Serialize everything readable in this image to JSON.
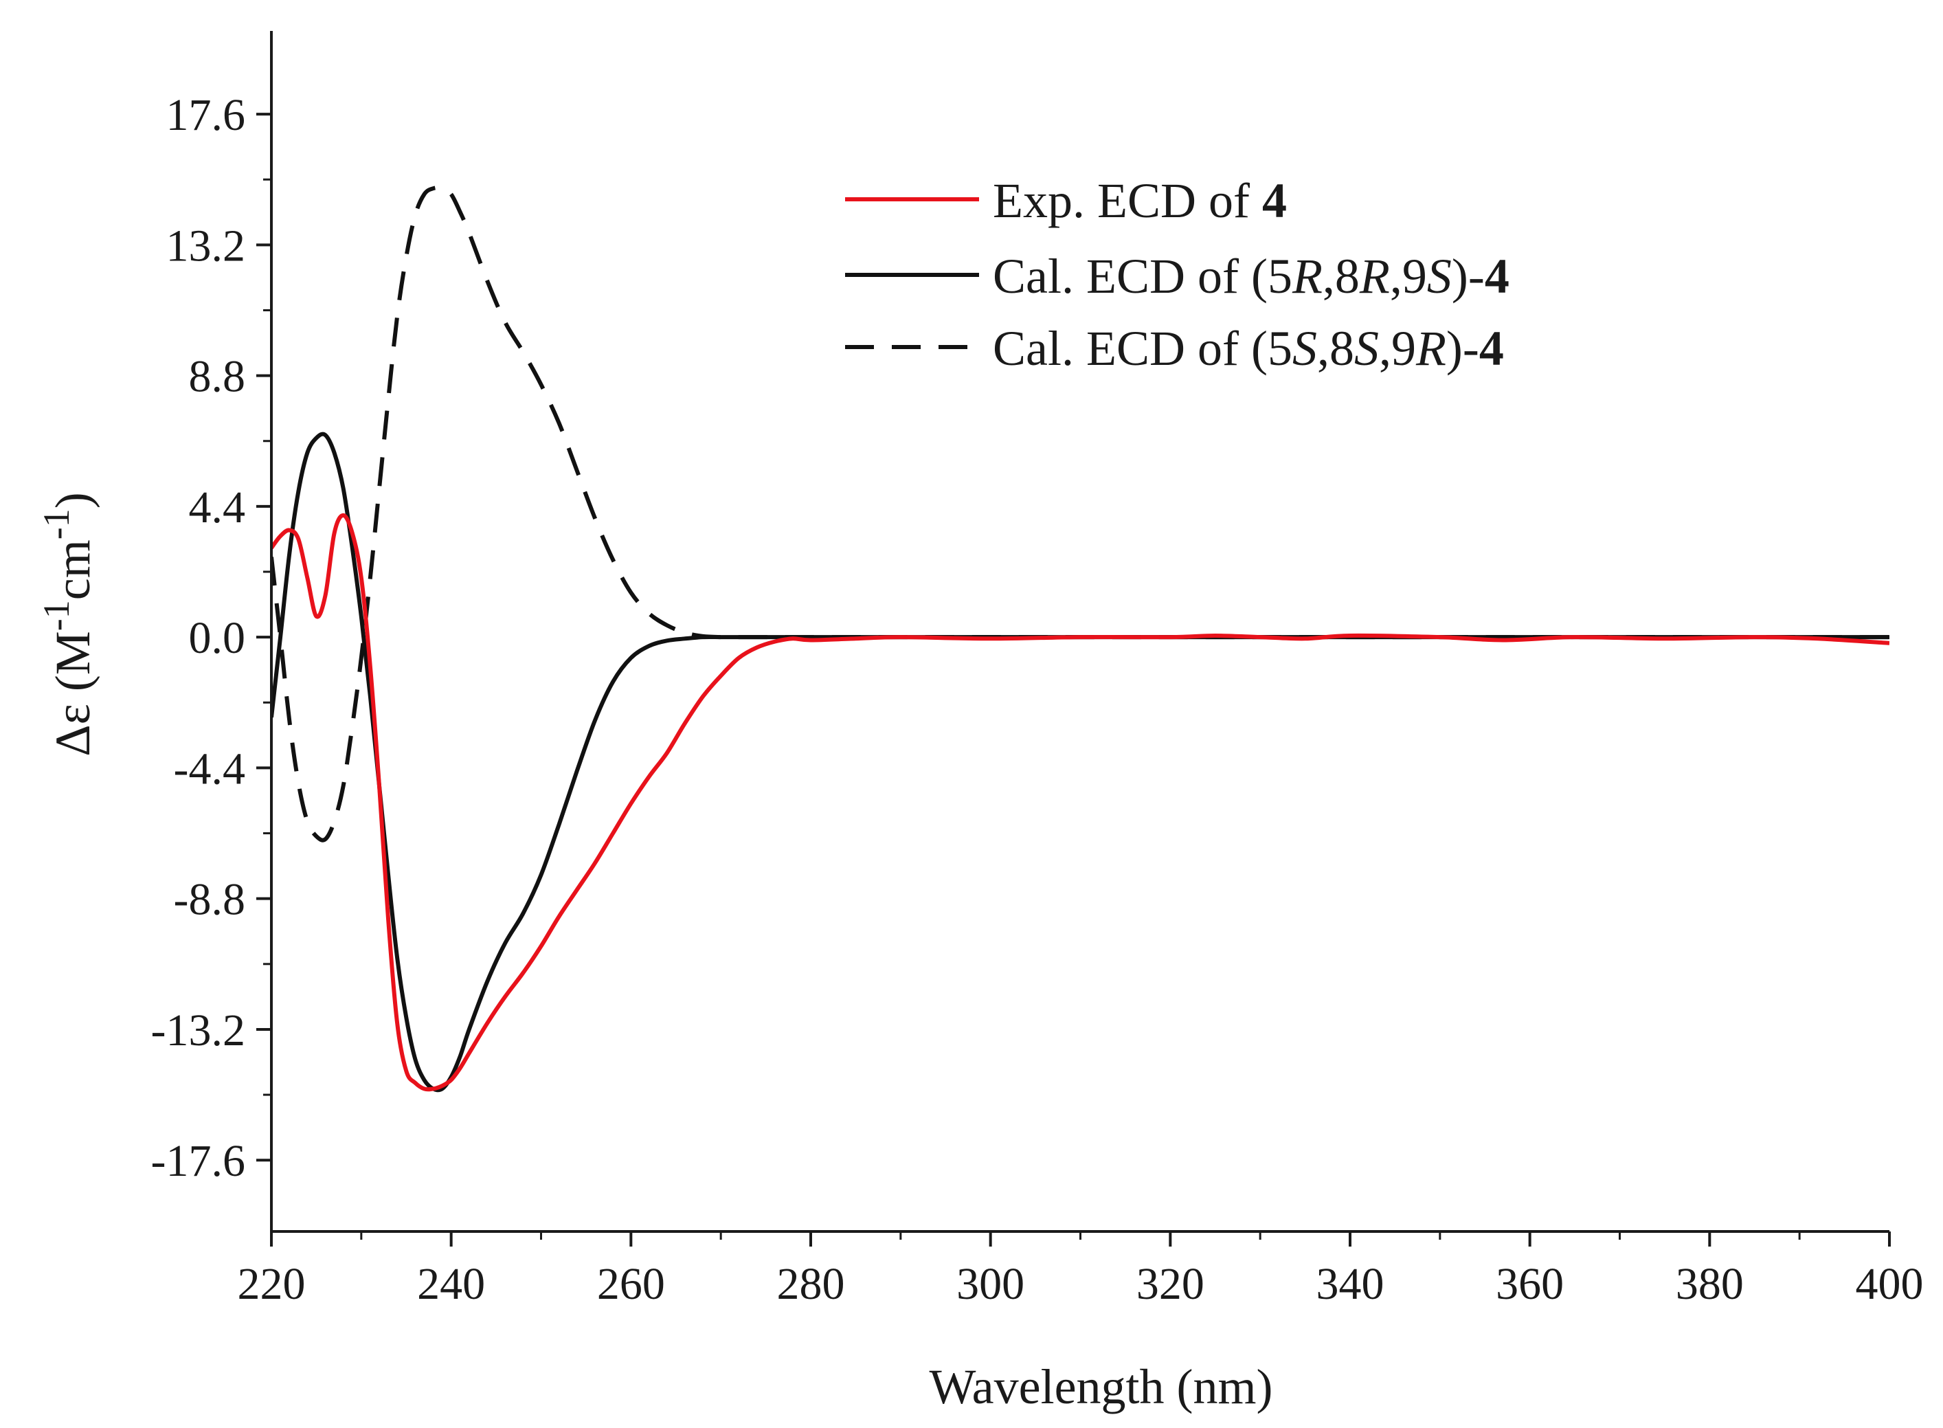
{
  "chart_data": {
    "type": "line",
    "title": "",
    "xlabel": "Wavelength (nm)",
    "ylabel_parts": [
      "Δε (M",
      "-1",
      "cm",
      "-1",
      ")"
    ],
    "xlim": [
      220,
      400
    ],
    "ylim": [
      -20.0,
      20.4
    ],
    "xticks": [
      220,
      240,
      260,
      280,
      300,
      320,
      340,
      360,
      380,
      400
    ],
    "xtick_labels": [
      "220",
      "240",
      "260",
      "280",
      "300",
      "320",
      "340",
      "360",
      "380",
      "400"
    ],
    "yticks": [
      -17.6,
      -13.2,
      -8.8,
      -4.4,
      0.0,
      4.4,
      8.8,
      13.2,
      17.6
    ],
    "ytick_labels": [
      "-17.6",
      "-13.2",
      "-8.8",
      "-4.4",
      "0.0",
      "4.4",
      "8.8",
      "13.2",
      "17.6"
    ],
    "grid": false,
    "legend_position": "top-right",
    "series": [
      {
        "name": "Exp. ECD of 4",
        "legend_parts": [
          {
            "text": "Exp. ECD of ",
            "style": "normal"
          },
          {
            "text": "4",
            "style": "bold"
          }
        ],
        "color": "#e8121b",
        "dash": "solid",
        "x": [
          220,
          221,
          222,
          223,
          224,
          225,
          226,
          227,
          228,
          229,
          230,
          231,
          232,
          233,
          234,
          235,
          236,
          237,
          238,
          239,
          240,
          241,
          242,
          244,
          246,
          248,
          250,
          252,
          254,
          256,
          258,
          260,
          262,
          264,
          266,
          268,
          270,
          272,
          274,
          276,
          278,
          280,
          285,
          290,
          300,
          310,
          320,
          325,
          330,
          335,
          340,
          350,
          357,
          365,
          375,
          385,
          392,
          400
        ],
        "y": [
          3.0,
          3.4,
          3.6,
          3.3,
          2.0,
          0.7,
          1.4,
          3.5,
          4.1,
          3.5,
          2.0,
          -1.0,
          -5.0,
          -9.5,
          -13.0,
          -14.6,
          -15.0,
          -15.2,
          -15.2,
          -15.1,
          -14.9,
          -14.5,
          -14.0,
          -13.0,
          -12.1,
          -11.3,
          -10.4,
          -9.4,
          -8.5,
          -7.6,
          -6.6,
          -5.6,
          -4.7,
          -3.9,
          -2.9,
          -2.0,
          -1.3,
          -0.7,
          -0.35,
          -0.15,
          -0.05,
          -0.1,
          -0.05,
          0.0,
          -0.05,
          0.0,
          0.0,
          0.05,
          0.0,
          -0.05,
          0.05,
          0.0,
          -0.1,
          0.0,
          -0.05,
          0.0,
          -0.05,
          -0.2
        ]
      },
      {
        "name": "Cal. ECD of (5R,8R,9S)-4",
        "legend_parts": [
          {
            "text": "Cal. ECD of (5",
            "style": "normal"
          },
          {
            "text": "R",
            "style": "italic"
          },
          {
            "text": ",8",
            "style": "normal"
          },
          {
            "text": "R",
            "style": "italic"
          },
          {
            "text": ",9",
            "style": "normal"
          },
          {
            "text": "S",
            "style": "italic"
          },
          {
            "text": ")-",
            "style": "normal"
          },
          {
            "text": "4",
            "style": "bold"
          }
        ],
        "color": "#111111",
        "dash": "solid",
        "x": [
          220,
          221,
          222,
          223,
          224,
          225,
          226,
          227,
          228,
          229,
          230,
          231,
          232,
          233,
          234,
          235,
          236,
          237,
          238,
          239,
          240,
          241,
          242,
          244,
          246,
          248,
          250,
          252,
          254,
          256,
          258,
          260,
          262,
          264,
          266,
          268,
          270,
          272,
          276,
          300,
          350,
          400
        ],
        "y": [
          -2.7,
          0.0,
          2.8,
          4.9,
          6.2,
          6.7,
          6.8,
          6.2,
          5.0,
          3.0,
          0.7,
          -2.0,
          -5.0,
          -8.0,
          -10.8,
          -12.8,
          -14.2,
          -14.9,
          -15.2,
          -15.2,
          -14.8,
          -14.1,
          -13.2,
          -11.6,
          -10.3,
          -9.3,
          -8.0,
          -6.3,
          -4.5,
          -2.8,
          -1.5,
          -0.7,
          -0.3,
          -0.12,
          -0.05,
          0.0,
          0.0,
          0.0,
          0.0,
          0.0,
          0.0,
          0.0
        ]
      },
      {
        "name": "Cal. ECD of (5S,8S,9R)-4",
        "legend_parts": [
          {
            "text": "Cal. ECD of (5",
            "style": "normal"
          },
          {
            "text": "S",
            "style": "italic"
          },
          {
            "text": ",8",
            "style": "normal"
          },
          {
            "text": "S",
            "style": "italic"
          },
          {
            "text": ",9",
            "style": "normal"
          },
          {
            "text": "R",
            "style": "italic"
          },
          {
            "text": ")-",
            "style": "normal"
          },
          {
            "text": "4",
            "style": "bold"
          }
        ],
        "color": "#111111",
        "dash": "dashed",
        "x": [
          220,
          221,
          222,
          223,
          224,
          225,
          226,
          227,
          228,
          229,
          230,
          231,
          232,
          233,
          234,
          235,
          236,
          237,
          238,
          239,
          240,
          241,
          242,
          244,
          246,
          248,
          250,
          252,
          254,
          256,
          258,
          260,
          262,
          264,
          266,
          268,
          270,
          272,
          276,
          300,
          350,
          400
        ],
        "y": [
          2.7,
          0.0,
          -2.8,
          -4.9,
          -6.2,
          -6.7,
          -6.8,
          -6.2,
          -5.0,
          -3.0,
          -0.7,
          2.0,
          5.0,
          8.0,
          10.8,
          12.8,
          14.2,
          14.9,
          15.1,
          15.1,
          14.9,
          14.3,
          13.6,
          12.0,
          10.6,
          9.6,
          8.5,
          7.2,
          5.6,
          4.0,
          2.6,
          1.5,
          0.8,
          0.4,
          0.15,
          0.03,
          0.0,
          0.0,
          0.0,
          0.0,
          0.0,
          0.0
        ]
      }
    ]
  },
  "colors": {
    "axis": "#1a1a1a",
    "experimental": "#e8121b",
    "calculated": "#111111"
  }
}
